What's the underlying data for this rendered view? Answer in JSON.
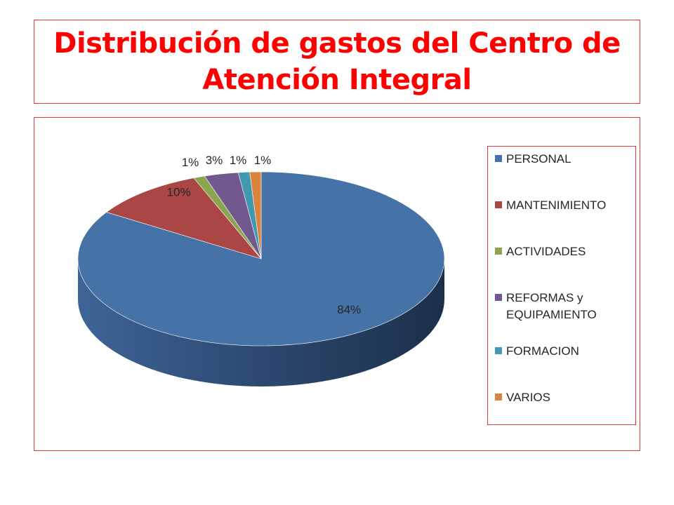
{
  "title": "Distribución de gastos del Centro de Atención Integral",
  "chart_data": {
    "type": "pie",
    "title": "Distribución de gastos del Centro de Atención Integral",
    "labels": [
      "PERSONAL",
      "MANTENIMIENTO",
      "ACTIVIDADES",
      "REFORMAS y EQUIPAMIENTO",
      "FORMACION",
      "VARIOS"
    ],
    "values": [
      84,
      10,
      1,
      3,
      1,
      1
    ],
    "value_labels": [
      "84%",
      "10%",
      "1%",
      "3%",
      "1%",
      "1%"
    ],
    "colors": [
      "#4572A7",
      "#AA4643",
      "#89A54E",
      "#71588F",
      "#4198AF",
      "#DB843D"
    ],
    "legend_position": "right",
    "style": "3d"
  }
}
